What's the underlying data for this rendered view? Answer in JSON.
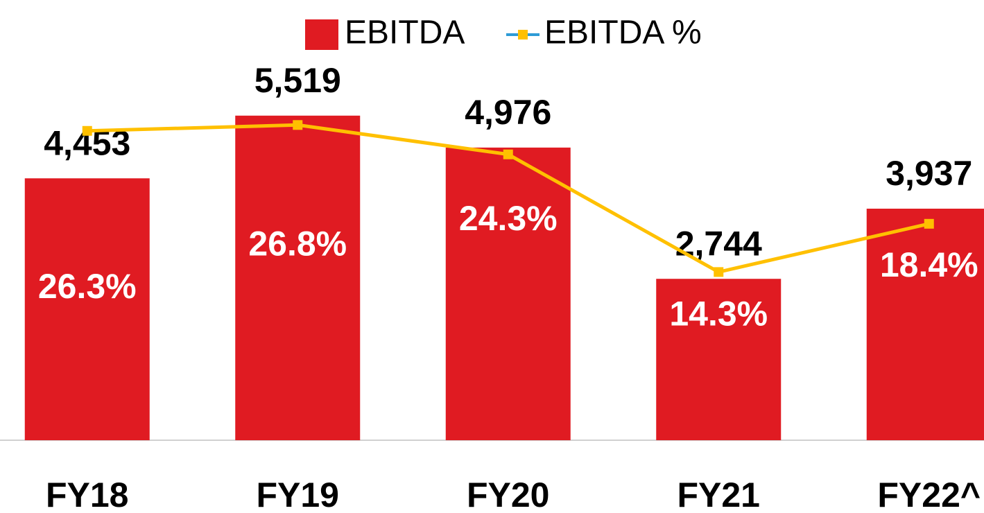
{
  "chart_data": {
    "type": "bar_line",
    "categories": [
      "FY18",
      "FY19",
      "FY20",
      "FY21",
      "FY22^"
    ],
    "series": [
      {
        "name": "EBITDA",
        "type": "bar",
        "color": "#e01b22",
        "values": [
          4453,
          5519,
          4976,
          2744,
          3937
        ],
        "value_labels": [
          "4,453",
          "5,519",
          "4,976",
          "2,744",
          "3,937"
        ]
      },
      {
        "name": "EBITDA %",
        "type": "line",
        "axis": "y2",
        "color": "#ffc000",
        "values": [
          26.3,
          26.8,
          24.3,
          14.3,
          18.4
        ],
        "value_labels": [
          "26.3%",
          "26.8%",
          "24.3%",
          "14.3%",
          "18.4%"
        ]
      }
    ],
    "ylim": [
      0,
      6000
    ],
    "y2lim": [
      0,
      30
    ],
    "legend": "top"
  }
}
